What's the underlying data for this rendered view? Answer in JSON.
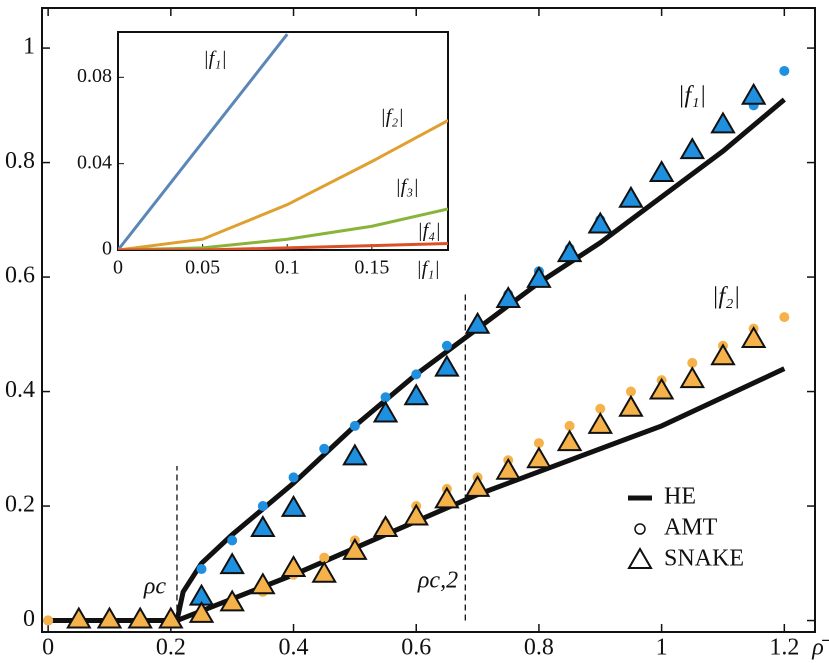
{
  "chart_data": {
    "type": "line",
    "xlabel": "ρ̄",
    "xlim": [
      -0.01,
      1.25
    ],
    "ylim": [
      -0.02,
      1.07
    ],
    "xticks": [
      0,
      0.2,
      0.4,
      0.6,
      0.8,
      1,
      1.2
    ],
    "yticks": [
      0,
      0.2,
      0.4,
      0.6,
      0.8,
      1
    ],
    "annotations": [
      "ρc",
      "ρc,2",
      "|f₁|",
      "|f₂|"
    ],
    "vlines": [
      0.21,
      0.68
    ],
    "series": [
      {
        "name": "HE",
        "marker": "line",
        "color": "#111111",
        "x": [
          0,
          0.21,
          0.22,
          0.25,
          0.3,
          0.4,
          0.5,
          0.6,
          0.7,
          0.8,
          0.9,
          1.0,
          1.1,
          1.2
        ],
        "values": [
          0,
          0,
          0.05,
          0.1,
          0.15,
          0.24,
          0.34,
          0.43,
          0.51,
          0.59,
          0.66,
          0.74,
          0.82,
          0.91
        ]
      },
      {
        "name": "HE",
        "marker": "line",
        "color": "#111111",
        "x": [
          0,
          0.21,
          0.4,
          0.7,
          1.0,
          1.2
        ],
        "values": [
          0,
          0,
          0.08,
          0.22,
          0.34,
          0.44
        ]
      },
      {
        "name": "AMT",
        "marker": "circle",
        "color": "#1f8fe0",
        "x": [
          0,
          0.05,
          0.1,
          0.15,
          0.2,
          0.25,
          0.3,
          0.35,
          0.4,
          0.45,
          0.5,
          0.55,
          0.6,
          0.65,
          0.7,
          0.75,
          0.8,
          0.85,
          0.9,
          0.95,
          1.0,
          1.05,
          1.1,
          1.15,
          1.2
        ],
        "values": [
          0,
          0,
          0,
          0,
          0,
          0.09,
          0.14,
          0.2,
          0.25,
          0.3,
          0.34,
          0.39,
          0.43,
          0.48,
          0.52,
          0.57,
          0.61,
          0.65,
          0.7,
          0.74,
          0.78,
          0.82,
          0.86,
          0.9,
          0.96
        ]
      },
      {
        "name": "AMT",
        "marker": "circle",
        "color": "#f6b24a",
        "x": [
          0,
          0.05,
          0.1,
          0.15,
          0.2,
          0.25,
          0.3,
          0.35,
          0.4,
          0.45,
          0.5,
          0.55,
          0.6,
          0.65,
          0.7,
          0.75,
          0.8,
          0.85,
          0.9,
          0.95,
          1.0,
          1.05,
          1.1,
          1.15,
          1.2
        ],
        "values": [
          0,
          0,
          0,
          0,
          0,
          0.01,
          0.03,
          0.05,
          0.08,
          0.11,
          0.14,
          0.17,
          0.2,
          0.23,
          0.25,
          0.28,
          0.31,
          0.34,
          0.37,
          0.4,
          0.42,
          0.45,
          0.48,
          0.51,
          0.53
        ]
      },
      {
        "name": "SNAKE",
        "marker": "triangle",
        "color": "#1f8fe0",
        "x": [
          0.25,
          0.3,
          0.35,
          0.4,
          0.5,
          0.55,
          0.6,
          0.65,
          0.7,
          0.75,
          0.8,
          0.85,
          0.9,
          0.95,
          1.0,
          1.05,
          1.1,
          1.15
        ],
        "values": [
          0.04,
          0.095,
          0.16,
          0.195,
          0.285,
          0.36,
          0.39,
          0.44,
          0.515,
          0.56,
          0.595,
          0.64,
          0.69,
          0.735,
          0.78,
          0.82,
          0.865,
          0.915
        ]
      },
      {
        "name": "SNAKE",
        "marker": "triangle",
        "color": "#f6b24a",
        "x": [
          0.05,
          0.1,
          0.15,
          0.2,
          0.25,
          0.3,
          0.35,
          0.4,
          0.45,
          0.5,
          0.55,
          0.6,
          0.65,
          0.7,
          0.75,
          0.8,
          0.85,
          0.9,
          0.95,
          1.0,
          1.05,
          1.1,
          1.15
        ],
        "values": [
          0,
          0,
          0,
          0,
          0.01,
          0.03,
          0.06,
          0.09,
          0.08,
          0.12,
          0.16,
          0.18,
          0.21,
          0.23,
          0.26,
          0.28,
          0.31,
          0.34,
          0.37,
          0.4,
          0.42,
          0.46,
          0.49
        ]
      }
    ],
    "inset": {
      "type": "line",
      "xlabel": "|f₁|",
      "xlim": [
        0,
        0.195
      ],
      "ylim": [
        0,
        0.101
      ],
      "xticks": [
        0,
        0.05,
        0.1,
        0.15
      ],
      "yticks": [
        0,
        0.04,
        0.08
      ],
      "series": [
        {
          "name": "|f₁|",
          "color": "#5b86b8",
          "x": [
            0,
            0.1
          ],
          "values": [
            0,
            0.1
          ]
        },
        {
          "name": "|f₂|",
          "color": "#e0a030",
          "x": [
            0,
            0.05,
            0.1,
            0.15,
            0.195
          ],
          "values": [
            0,
            0.005,
            0.021,
            0.041,
            0.06
          ]
        },
        {
          "name": "|f₃|",
          "color": "#8ab33a",
          "x": [
            0,
            0.05,
            0.1,
            0.15,
            0.195
          ],
          "values": [
            0,
            0.001,
            0.005,
            0.011,
            0.019
          ]
        },
        {
          "name": "|f₄|",
          "color": "#d9502a",
          "x": [
            0,
            0.05,
            0.1,
            0.15,
            0.195
          ],
          "values": [
            0,
            0,
            0.001,
            0.002,
            0.003
          ]
        }
      ]
    }
  }
}
